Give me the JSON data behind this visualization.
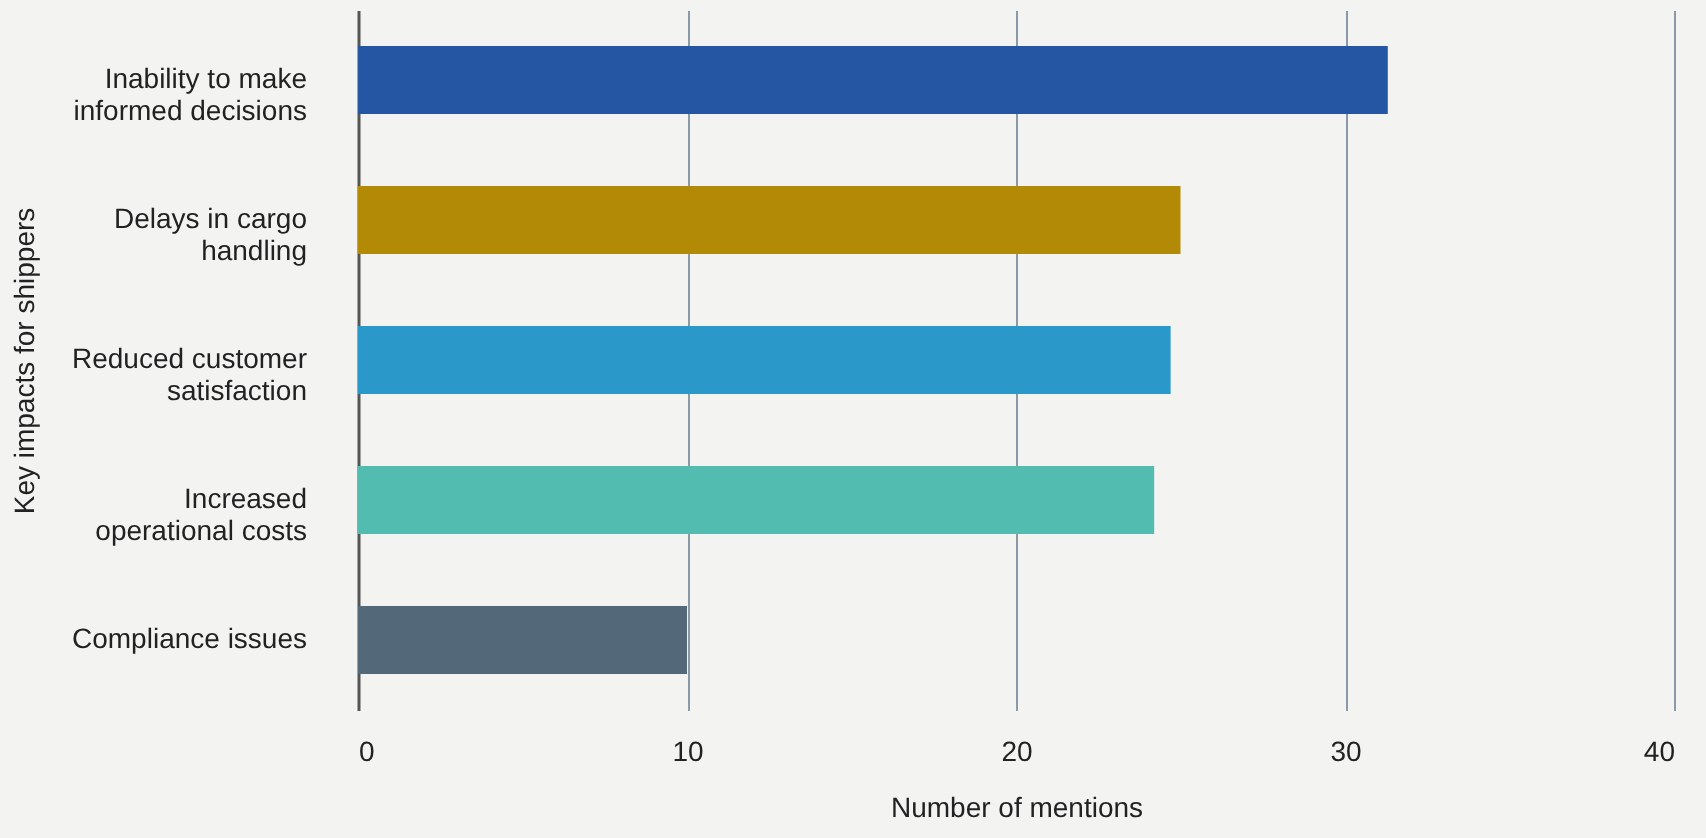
{
  "chart_data": {
    "type": "bar",
    "orientation": "horizontal",
    "xlabel": "Number of mentions",
    "ylabel": "Key impacts for shippers",
    "categories": [
      "Inability to make informed decisions",
      "Delays in cargo handling",
      "Reduced customer satisfaction",
      "Increased operational costs",
      "Compliance issues"
    ],
    "values": [
      31.3,
      25,
      24.7,
      24.2,
      10
    ],
    "colors": [
      "#2456a4",
      "#b38a06",
      "#2a98c9",
      "#52bcb0",
      "#536878"
    ],
    "xlim": [
      0,
      40
    ],
    "xticks": [
      0,
      10,
      20,
      30,
      40
    ],
    "grid": "x"
  }
}
